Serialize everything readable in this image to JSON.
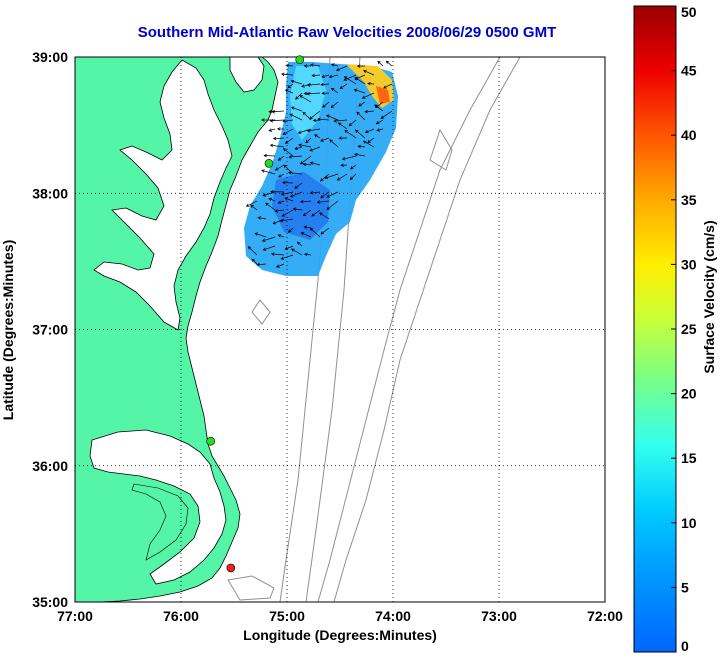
{
  "title": "Southern Mid-Atlantic Raw Velocities 2008/06/29 0500 GMT",
  "map": {
    "xlabel": "Longitude (Degrees:Minutes)",
    "ylabel": "Latitude (Degrees:Minutes)",
    "x_ticks": [
      "77:00",
      "76:00",
      "75:00",
      "74:00",
      "73:00",
      "72:00"
    ],
    "y_ticks": [
      "39:00",
      "38:00",
      "37:00",
      "36:00",
      "35:00"
    ],
    "lon_range": [
      -77,
      -72
    ],
    "lat_range": [
      35,
      39
    ],
    "grid": "dotted",
    "colors": {
      "land": "#55f5a8",
      "ocean": "#ffffff",
      "bathymetry": "#909090",
      "coast": "#000000"
    },
    "stations": [
      {
        "lon": -74.88,
        "lat": 38.98,
        "color": "#22dd22"
      },
      {
        "lon": -75.17,
        "lat": 38.22,
        "color": "#22dd22"
      },
      {
        "lon": -75.72,
        "lat": 36.18,
        "color": "#22dd22"
      },
      {
        "lon": -75.53,
        "lat": 35.25,
        "color": "#ee2222"
      }
    ]
  },
  "colorbar": {
    "label": "Surface Velocity (cm/s)",
    "ticks": [
      "0",
      "5",
      "10",
      "15",
      "20",
      "25",
      "30",
      "35",
      "40",
      "45",
      "50"
    ],
    "range": [
      0,
      50
    ]
  }
}
